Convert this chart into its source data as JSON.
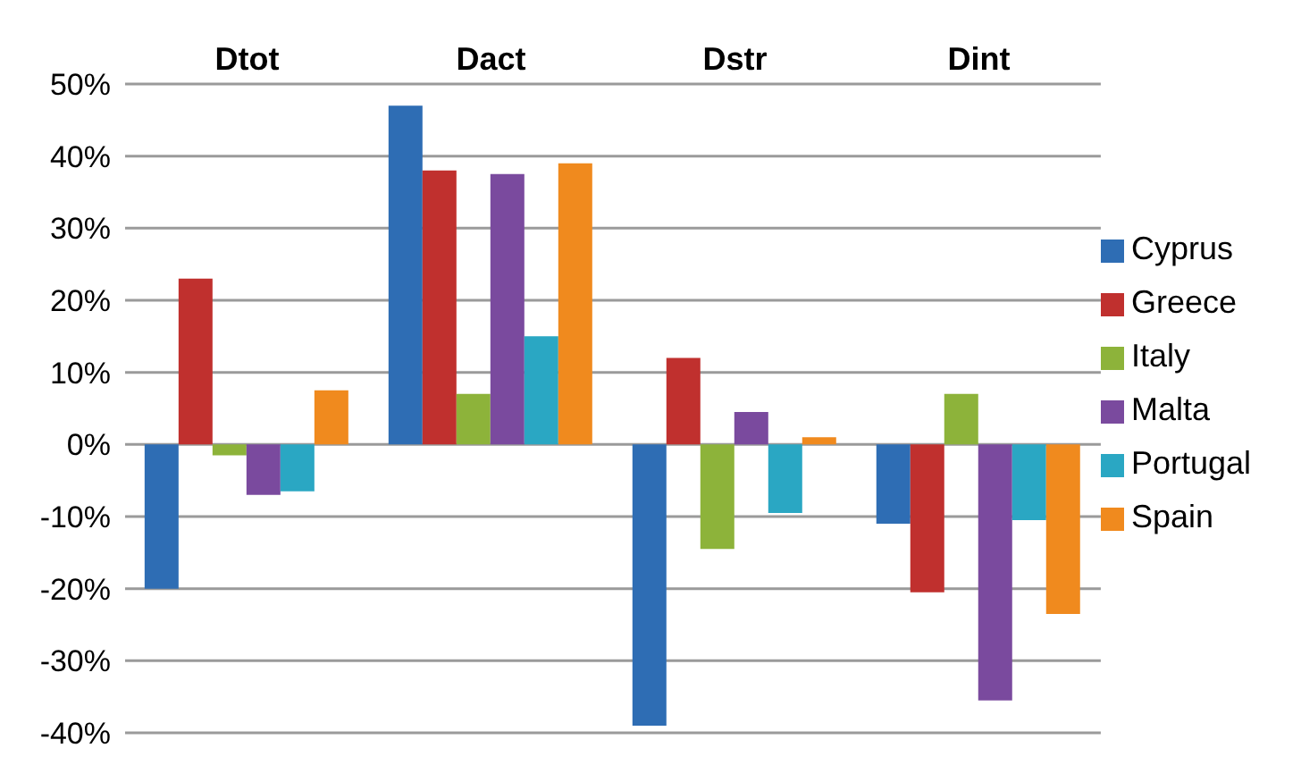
{
  "chart_data": {
    "type": "bar",
    "categories": [
      "Dtot",
      "Dact",
      "Dstr",
      "Dint"
    ],
    "series": [
      {
        "name": "Cyprus",
        "color": "#2e6db4",
        "values": [
          -20,
          47,
          -39,
          -11
        ]
      },
      {
        "name": "Greece",
        "color": "#c0302e",
        "values": [
          23,
          38,
          12,
          -20.5
        ]
      },
      {
        "name": "Italy",
        "color": "#8db33a",
        "values": [
          -1.5,
          7,
          -14.5,
          7
        ]
      },
      {
        "name": "Malta",
        "color": "#7a4a9e",
        "values": [
          -7,
          37.5,
          4.5,
          -35.5
        ]
      },
      {
        "name": "Portugal",
        "color": "#2aa7c3",
        "values": [
          -6.5,
          15,
          -9.5,
          -10.5
        ]
      },
      {
        "name": "Spain",
        "color": "#f08a1e",
        "values": [
          7.5,
          39,
          1,
          -23.5
        ]
      }
    ],
    "ylim": [
      -40,
      50
    ],
    "yticks": [
      {
        "value": -40,
        "label": "-40%"
      },
      {
        "value": -30,
        "label": "-30%"
      },
      {
        "value": -20,
        "label": "-20%"
      },
      {
        "value": -10,
        "label": "-10%"
      },
      {
        "value": 0,
        "label": "0%"
      },
      {
        "value": 10,
        "label": "10%"
      },
      {
        "value": 20,
        "label": "20%"
      },
      {
        "value": 30,
        "label": "30%"
      },
      {
        "value": 40,
        "label": "40%"
      },
      {
        "value": 50,
        "label": "50%"
      }
    ],
    "grid": "y",
    "legend": "right"
  }
}
